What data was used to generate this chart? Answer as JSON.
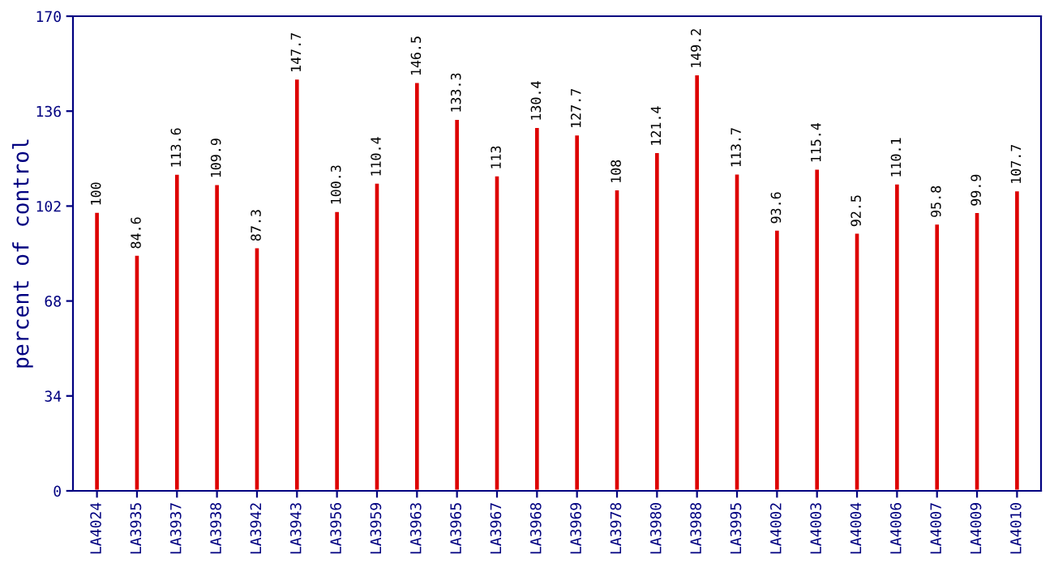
{
  "chart_data": {
    "type": "bar",
    "ylabel": "percent of control",
    "categories": [
      "LA4024",
      "LA3935",
      "LA3937",
      "LA3938",
      "LA3942",
      "LA3943",
      "LA3956",
      "LA3959",
      "LA3963",
      "LA3965",
      "LA3967",
      "LA3968",
      "LA3969",
      "LA3978",
      "LA3980",
      "LA3988",
      "LA3995",
      "LA4002",
      "LA4003",
      "LA4004",
      "LA4006",
      "LA4007",
      "LA4009",
      "LA4010"
    ],
    "values": [
      100,
      84.6,
      113.6,
      109.9,
      87.3,
      147.7,
      100.3,
      110.4,
      146.5,
      133.3,
      113,
      130.4,
      127.7,
      108,
      121.4,
      149.2,
      113.7,
      93.6,
      115.4,
      92.5,
      110.1,
      95.8,
      99.9,
      107.7
    ],
    "color": "#dd0000",
    "ylim": [
      0,
      170
    ],
    "yticks": [
      0,
      34,
      68,
      102,
      136,
      170
    ],
    "data_labels": true,
    "grid": false,
    "legend": false
  }
}
